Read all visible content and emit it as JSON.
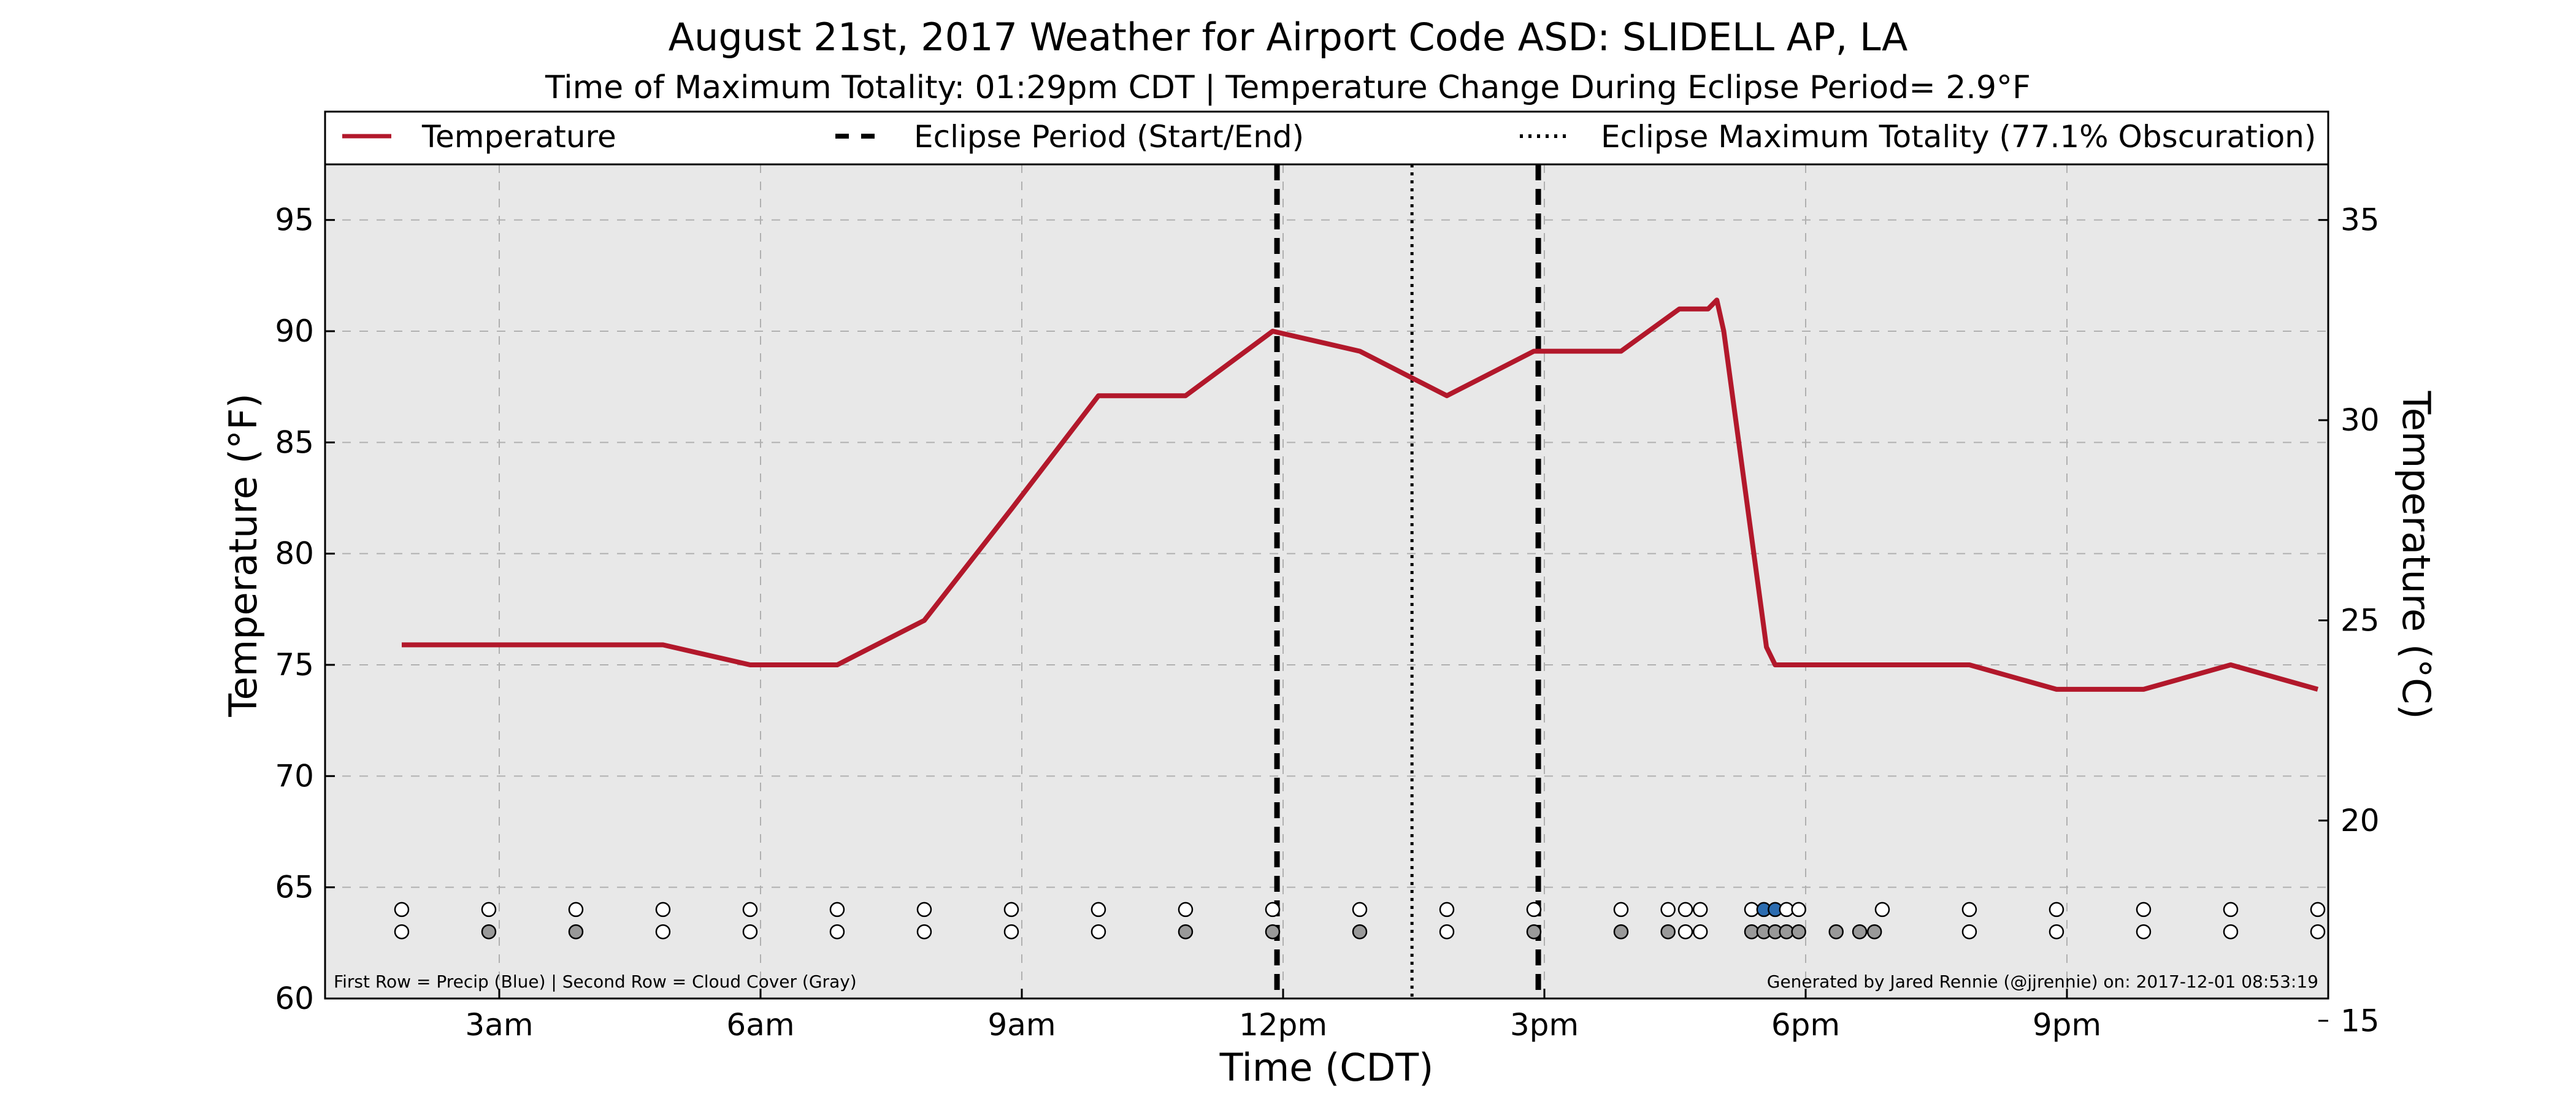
{
  "chart_data": {
    "type": "line",
    "title": "August 21st, 2017 Weather for Airport Code ASD: SLIDELL AP, LA",
    "subtitle": "Time of Maximum Totality: 01:29pm CDT | Temperature Change During Eclipse Period= 2.9°F",
    "xlabel": "Time (CDT)",
    "ylabel_left": "Temperature (°F)",
    "ylabel_right": "Temperature (°C)",
    "x_range_hours": [
      1,
      24
    ],
    "y_left_range": [
      60,
      97.5
    ],
    "y_right_ticks": [
      15,
      20,
      25,
      30,
      35
    ],
    "x_ticks": [
      {
        "hour": 3,
        "label": "3am"
      },
      {
        "hour": 6,
        "label": "6am"
      },
      {
        "hour": 9,
        "label": "9am"
      },
      {
        "hour": 12,
        "label": "12pm"
      },
      {
        "hour": 15,
        "label": "3pm"
      },
      {
        "hour": 18,
        "label": "6pm"
      },
      {
        "hour": 21,
        "label": "9pm"
      }
    ],
    "y_left_ticks": [
      60,
      65,
      70,
      75,
      80,
      85,
      90,
      95
    ],
    "grid": true,
    "legend": {
      "placement": "top",
      "entries": [
        {
          "label": "Temperature",
          "style": "solid"
        },
        {
          "label": "Eclipse Period (Start/End)",
          "style": "dashed"
        },
        {
          "label": "Eclipse Maximum Totality (77.1% Obscuration)",
          "style": "dotted"
        }
      ]
    },
    "series": [
      {
        "name": "Temperature",
        "color": "#b2182b",
        "x_hours": [
          1.88,
          4.88,
          5.88,
          6.88,
          7.88,
          8.88,
          9.88,
          10.88,
          11.88,
          12.88,
          13.88,
          14.88,
          15.88,
          16.55,
          16.88,
          16.98,
          17.06,
          17.55,
          17.65,
          17.88,
          18.88,
          19.88,
          20.88,
          21.88,
          22.88,
          23.88
        ],
        "y_f": [
          75.9,
          75.9,
          75.0,
          75.0,
          77.0,
          82.0,
          87.1,
          87.1,
          90.0,
          89.1,
          87.1,
          89.1,
          89.1,
          91.0,
          91.0,
          91.4,
          90.0,
          75.8,
          75.0,
          75.0,
          75.0,
          75.0,
          73.9,
          73.9,
          75.0,
          73.9
        ]
      }
    ],
    "eclipse_start_hour": 11.93,
    "eclipse_end_hour": 14.93,
    "eclipse_max_hour": 13.48,
    "precip_row": {
      "label": "First Row = Precip (Blue)",
      "y_f": 64,
      "x_hours": [
        1.88,
        2.88,
        3.88,
        4.88,
        5.88,
        6.88,
        7.88,
        8.88,
        9.88,
        10.88,
        11.88,
        12.88,
        13.88,
        14.88,
        15.88,
        16.42,
        16.62,
        16.79,
        17.38,
        17.52,
        17.65,
        17.78,
        17.92,
        18.88,
        19.88,
        20.88,
        21.88,
        22.88,
        23.88
      ],
      "values": [
        "none",
        "none",
        "none",
        "none",
        "none",
        "none",
        "none",
        "none",
        "none",
        "none",
        "none",
        "none",
        "none",
        "none",
        "none",
        "none",
        "none",
        "none",
        "none",
        "precip",
        "precip",
        "none",
        "none",
        "none",
        "none",
        "none",
        "none",
        "none",
        "none"
      ]
    },
    "cloud_row": {
      "label": "Second Row = Cloud Cover (Gray)",
      "y_f": 63,
      "x_hours": [
        1.88,
        2.88,
        3.88,
        4.88,
        5.88,
        6.88,
        7.88,
        8.88,
        9.88,
        10.88,
        11.88,
        12.88,
        13.88,
        14.88,
        15.88,
        16.42,
        16.62,
        16.79,
        17.38,
        17.52,
        17.65,
        17.78,
        17.92,
        18.35,
        18.62,
        18.79,
        19.88,
        20.88,
        21.88,
        22.88,
        23.88
      ],
      "values": [
        "clear",
        "cloud",
        "cloud",
        "clear",
        "clear",
        "clear",
        "clear",
        "clear",
        "clear",
        "cloud",
        "cloud",
        "cloud",
        "clear",
        "cloud",
        "cloud",
        "cloud",
        "clear",
        "clear",
        "cloud",
        "cloud",
        "cloud",
        "cloud",
        "cloud",
        "cloud",
        "cloud",
        "cloud",
        "clear",
        "clear",
        "clear",
        "clear",
        "clear"
      ]
    },
    "footnote_left": "First Row = Precip (Blue) | Second Row = Cloud Cover (Gray)",
    "footnote_right": "Generated by Jared Rennie (@jjrennie) on: 2017-12-01 08:53:19",
    "colors": {
      "plot_bg": "#e8e8e8",
      "grid": "#b0b0b0",
      "precip": "#2b6cb0",
      "cloud": "#999999",
      "empty": "#ffffff"
    }
  }
}
